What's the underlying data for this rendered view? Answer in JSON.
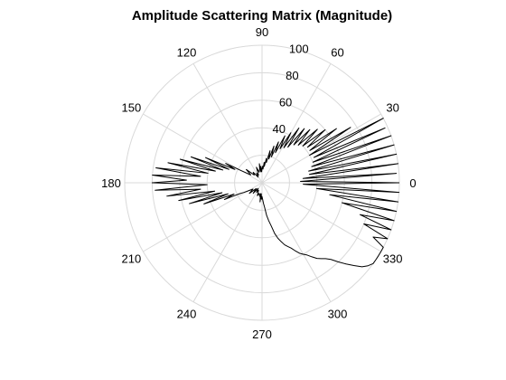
{
  "chart_data": {
    "type": "polar-line",
    "title": "Amplitude Scattering Matrix (Magnitude)",
    "rlim": [
      0,
      100
    ],
    "radial_ticks": [
      "40",
      "60",
      "80",
      "100"
    ],
    "radial_tick_values": [
      40,
      60,
      80,
      100
    ],
    "angular_ticks": [
      "0",
      "30",
      "60",
      "90",
      "120",
      "150",
      "180",
      "210",
      "240",
      "270",
      "300",
      "330"
    ],
    "angular_tick_values_deg": [
      0,
      30,
      60,
      90,
      120,
      150,
      180,
      210,
      240,
      270,
      300,
      330
    ],
    "grid": true,
    "line_color": "#000000",
    "grid_color": "#d9d9d9",
    "series": [
      {
        "theta_deg": [
          0,
          2,
          4,
          6,
          8,
          10,
          12,
          14,
          16,
          18,
          20,
          22,
          24,
          26,
          28,
          30,
          32,
          34,
          36,
          38,
          40,
          42,
          44,
          46,
          48,
          50,
          52,
          54,
          56,
          58,
          60,
          62,
          64,
          66,
          68,
          70,
          72,
          74,
          76,
          78,
          80,
          82,
          84,
          86,
          88,
          90,
          92,
          94,
          96,
          98,
          100,
          105,
          110,
          115,
          120,
          125,
          130,
          135,
          140,
          145,
          150,
          152,
          154,
          156,
          158,
          160,
          162,
          164,
          166,
          168,
          170,
          172,
          174,
          176,
          178,
          180,
          182,
          184,
          186,
          188,
          190,
          192,
          194,
          196,
          198,
          200,
          202,
          204,
          206,
          208,
          210,
          215,
          220,
          225,
          230,
          235,
          240,
          245,
          250,
          255,
          260,
          262,
          264,
          266,
          268,
          270,
          272,
          274,
          276,
          278,
          280,
          282,
          284,
          286,
          288,
          290,
          292,
          294,
          296,
          298,
          300,
          302,
          304,
          306,
          308,
          310,
          312,
          314,
          316,
          318,
          320,
          322,
          324,
          326,
          328,
          330,
          332,
          334,
          336,
          338,
          340,
          342,
          344,
          346,
          348,
          350,
          352,
          354,
          356,
          358,
          360
        ],
        "r": [
          100,
          28,
          98,
          30,
          100,
          35,
          100,
          35,
          100,
          38,
          100,
          40,
          98,
          42,
          100,
          40,
          76,
          42,
          67,
          42,
          60,
          40,
          56,
          38,
          52,
          36,
          50,
          32,
          48,
          30,
          42,
          28,
          38,
          24,
          32,
          20,
          28,
          18,
          24,
          15,
          18,
          12,
          15,
          10,
          12,
          10,
          8,
          12,
          8,
          14,
          10,
          8,
          12,
          6,
          8,
          5,
          10,
          8,
          15,
          10,
          18,
          30,
          22,
          45,
          26,
          55,
          30,
          62,
          35,
          70,
          40,
          78,
          45,
          80,
          55,
          80,
          40,
          78,
          45,
          70,
          35,
          62,
          30,
          55,
          26,
          45,
          22,
          30,
          18,
          15,
          12,
          8,
          12,
          6,
          10,
          5,
          8,
          6,
          10,
          8,
          10,
          8,
          14,
          8,
          12,
          10,
          12,
          15,
          18,
          24,
          28,
          32,
          38,
          42,
          45,
          48,
          50,
          52,
          55,
          58,
          60,
          62,
          65,
          68,
          70,
          72,
          75,
          80,
          85,
          90,
          95,
          98,
          100,
          100,
          100,
          100,
          100,
          90,
          100,
          80,
          100,
          75,
          100,
          60,
          100,
          50,
          100,
          40,
          100,
          30,
          100
        ]
      }
    ]
  }
}
